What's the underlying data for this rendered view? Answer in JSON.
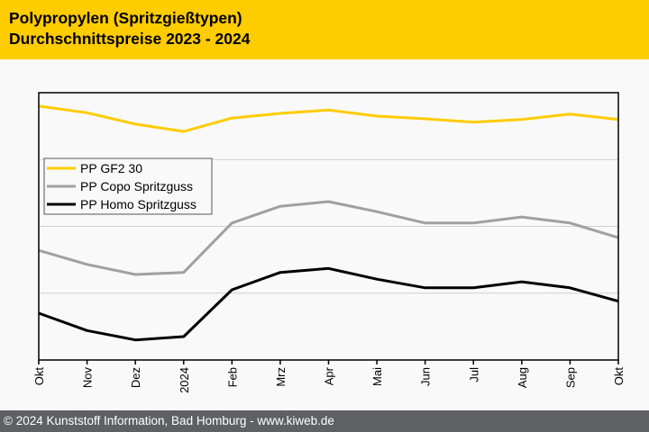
{
  "header": {
    "title_line1": "Polypropylen (Spritzgießtypen)",
    "title_line2": "Durchschnittspreise 2023 - 2024",
    "background": "#ffcc00"
  },
  "footer": {
    "text": "© 2024 Kunststoff Information, Bad Homburg - www.kiweb.de",
    "background": "#5f6063"
  },
  "chart_data": {
    "type": "line",
    "title": "Polypropylen (Spritzgießtypen) Durchschnittspreise 2023 - 2024",
    "xlabel": "",
    "ylabel": "",
    "x": [
      "Okt",
      "Nov",
      "Dez",
      "2024",
      "Feb",
      "Mrz",
      "Apr",
      "Mai",
      "Jun",
      "Jul",
      "Aug",
      "Sep",
      "Okt"
    ],
    "ylim": [
      0,
      4
    ],
    "y_ticks_labeled": false,
    "grid": "horizontal",
    "gridlines": [
      1,
      2,
      3
    ],
    "legend_placement": "upper-left",
    "series": [
      {
        "name": "PP GF2 30",
        "color": "#ffcc00",
        "values": [
          3.8,
          3.7,
          3.53,
          3.42,
          3.62,
          3.69,
          3.74,
          3.65,
          3.61,
          3.56,
          3.6,
          3.68,
          3.6
        ]
      },
      {
        "name": "PP Copo Spritzguss",
        "color": "#a0a0a0",
        "values": [
          1.64,
          1.43,
          1.28,
          1.31,
          2.05,
          2.3,
          2.37,
          2.22,
          2.05,
          2.05,
          2.14,
          2.05,
          1.83
        ]
      },
      {
        "name": "PP Homo Spritzguss",
        "color": "#000000",
        "values": [
          0.7,
          0.44,
          0.3,
          0.35,
          1.05,
          1.31,
          1.37,
          1.21,
          1.08,
          1.08,
          1.17,
          1.08,
          0.88
        ]
      }
    ],
    "note": "y-axis values are in relative gridline units (no scale printed)"
  }
}
